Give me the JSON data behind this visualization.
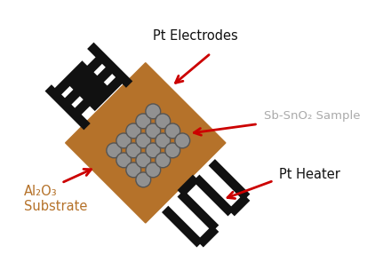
{
  "fig_width": 4.13,
  "fig_height": 3.04,
  "dpi": 100,
  "background": "#ffffff",
  "label_pt_electrodes": "Pt Electrodes",
  "label_sno2": "Sb-SnO₂ Sample",
  "label_pt_heater": "Pt Heater",
  "label_al2o3_line1": "Al₂O₃",
  "label_al2o3_line2": "Substrate",
  "electrode_color": "#111111",
  "substrate_color": "#b5722a",
  "sample_color": "#919191",
  "heater_color": "#111111",
  "arrow_color": "#cc0000",
  "label_color_main": "#111111",
  "label_color_sno2": "#aaaaaa",
  "label_color_al2o3": "#b5722a"
}
